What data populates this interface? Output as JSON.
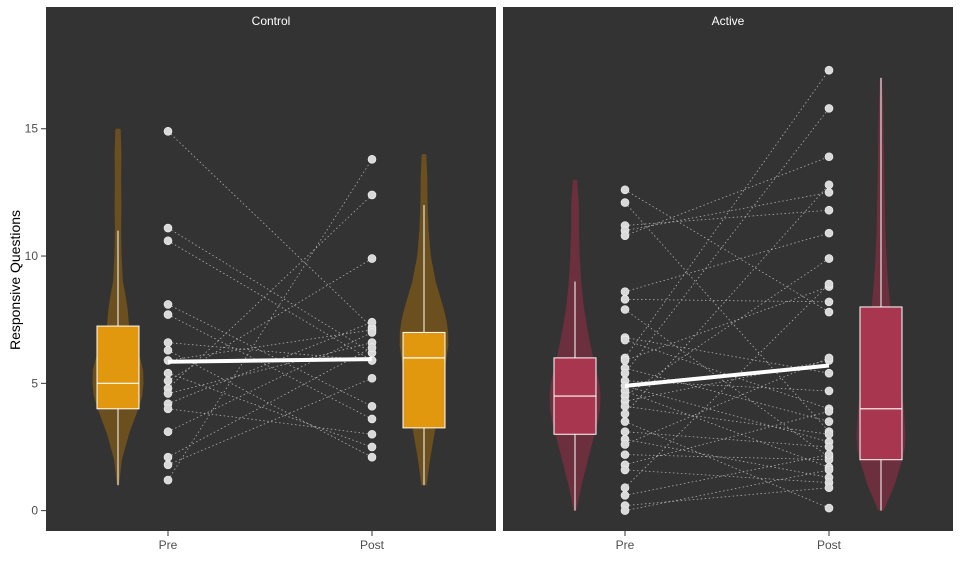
{
  "chart_data": {
    "type": "violin-box-paired-scatter",
    "ylabel": "Responsive Questions",
    "ylim": [
      -0.8,
      18.8
    ],
    "yticks": [
      0,
      5,
      10,
      15
    ],
    "categories": [
      "Pre",
      "Post"
    ],
    "grid": false,
    "panels": [
      {
        "name": "Control",
        "color": "#e2980e",
        "violin_color": "#6b4f1e",
        "violins": {
          "Pre": {
            "min": 1,
            "max": 15,
            "profile": [
              [
                1,
                0.04
              ],
              [
                2,
                0.15
              ],
              [
                3,
                0.42
              ],
              [
                4,
                0.78
              ],
              [
                4.5,
                0.93
              ],
              [
                5,
                0.98
              ],
              [
                5.5,
                0.97
              ],
              [
                6,
                0.85
              ],
              [
                6.5,
                0.62
              ],
              [
                7,
                0.45
              ],
              [
                8,
                0.36
              ],
              [
                8.5,
                0.28
              ],
              [
                9,
                0.19
              ],
              [
                10,
                0.14
              ],
              [
                11,
                0.12
              ],
              [
                12,
                0.13
              ],
              [
                13,
                0.12
              ],
              [
                14,
                0.13
              ],
              [
                15,
                0.1
              ]
            ]
          },
          "Post": {
            "min": 1,
            "max": 14,
            "profile": [
              [
                1,
                0.1
              ],
              [
                2,
                0.23
              ],
              [
                3,
                0.4
              ],
              [
                4,
                0.56
              ],
              [
                5,
                0.7
              ],
              [
                6,
                0.86
              ],
              [
                6.5,
                0.94
              ],
              [
                7,
                0.93
              ],
              [
                7.5,
                0.86
              ],
              [
                8,
                0.74
              ],
              [
                9,
                0.45
              ],
              [
                10,
                0.26
              ],
              [
                11,
                0.18
              ],
              [
                12,
                0.14
              ],
              [
                13,
                0.13
              ],
              [
                14,
                0.09
              ]
            ]
          }
        },
        "boxes": {
          "Pre": {
            "whisker_low": 1,
            "q1": 4,
            "median": 5,
            "q3": 7.25,
            "whisker_high": 11
          },
          "Post": {
            "whisker_low": 1,
            "q1": 3.25,
            "median": 6,
            "q3": 7,
            "whisker_high": 12
          }
        },
        "means": {
          "Pre": 5.85,
          "Post": 5.95
        },
        "pairs": [
          [
            14.9,
            7.2
          ],
          [
            11.1,
            6.2
          ],
          [
            10.6,
            5.9
          ],
          [
            8.1,
            4.1
          ],
          [
            7.7,
            3.6
          ],
          [
            6.6,
            5.9
          ],
          [
            6.3,
            2.1
          ],
          [
            5.9,
            7.1
          ],
          [
            5.4,
            2.5
          ],
          [
            5.1,
            9.9
          ],
          [
            4.8,
            12.4
          ],
          [
            4.6,
            6.6
          ],
          [
            4.2,
            7.4
          ],
          [
            4.0,
            3.0
          ],
          [
            3.1,
            7.0
          ],
          [
            2.1,
            6.4
          ],
          [
            1.8,
            5.2
          ],
          [
            1.2,
            13.8
          ]
        ]
      },
      {
        "name": "Active",
        "color": "#a8364e",
        "violin_color": "#6b2f3e",
        "violins": {
          "Pre": {
            "min": 0,
            "max": 13,
            "profile": [
              [
                0,
                0.05
              ],
              [
                1,
                0.25
              ],
              [
                2,
                0.5
              ],
              [
                3,
                0.75
              ],
              [
                3.5,
                0.88
              ],
              [
                4,
                0.96
              ],
              [
                4.5,
                0.98
              ],
              [
                5,
                0.93
              ],
              [
                5.5,
                0.82
              ],
              [
                6,
                0.7
              ],
              [
                7,
                0.5
              ],
              [
                8,
                0.34
              ],
              [
                9,
                0.24
              ],
              [
                10,
                0.18
              ],
              [
                11,
                0.15
              ],
              [
                12,
                0.15
              ],
              [
                13,
                0.08
              ]
            ]
          },
          "Post": {
            "min": 0,
            "max": 17,
            "profile": [
              [
                0,
                0.1
              ],
              [
                1,
                0.52
              ],
              [
                2,
                0.82
              ],
              [
                2.5,
                0.92
              ],
              [
                3,
                0.94
              ],
              [
                4,
                0.88
              ],
              [
                5,
                0.76
              ],
              [
                6,
                0.62
              ],
              [
                7,
                0.48
              ],
              [
                8,
                0.36
              ],
              [
                9,
                0.27
              ],
              [
                10,
                0.21
              ],
              [
                11,
                0.17
              ],
              [
                12,
                0.15
              ],
              [
                13,
                0.13
              ],
              [
                14,
                0.12
              ],
              [
                15,
                0.1
              ],
              [
                16,
                0.08
              ],
              [
                17,
                0.04
              ]
            ]
          }
        },
        "boxes": {
          "Pre": {
            "whisker_low": 0,
            "q1": 3,
            "median": 4.5,
            "q3": 6,
            "whisker_high": 9
          },
          "Post": {
            "whisker_low": 0,
            "q1": 2,
            "median": 4,
            "q3": 8,
            "whisker_high": 17
          }
        },
        "means": {
          "Pre": 4.9,
          "Post": 5.7
        },
        "pairs": [
          [
            12.6,
            7.8
          ],
          [
            12.1,
            3.1
          ],
          [
            11.2,
            11.8
          ],
          [
            11.0,
            12.5
          ],
          [
            10.8,
            13.9
          ],
          [
            8.6,
            10.9
          ],
          [
            8.3,
            8.2
          ],
          [
            7.9,
            2.1
          ],
          [
            6.8,
            5.4
          ],
          [
            6.7,
            4.0
          ],
          [
            6.0,
            17.3
          ],
          [
            5.9,
            8.8
          ],
          [
            5.6,
            3.5
          ],
          [
            5.4,
            15.8
          ],
          [
            5.1,
            4.7
          ],
          [
            4.9,
            2.7
          ],
          [
            4.7,
            1.7
          ],
          [
            4.5,
            9.9
          ],
          [
            4.3,
            5.9
          ],
          [
            4.1,
            3.0
          ],
          [
            3.8,
            12.8
          ],
          [
            3.5,
            0.1
          ],
          [
            3.1,
            2.5
          ],
          [
            2.8,
            1.3
          ],
          [
            2.6,
            6.0
          ],
          [
            2.2,
            2.0
          ],
          [
            1.8,
            3.9
          ],
          [
            1.6,
            1.1
          ],
          [
            0.9,
            8.9
          ],
          [
            0.6,
            2.2
          ],
          [
            0.2,
            0.9
          ],
          [
            0.0,
            1.6
          ]
        ]
      }
    ]
  }
}
